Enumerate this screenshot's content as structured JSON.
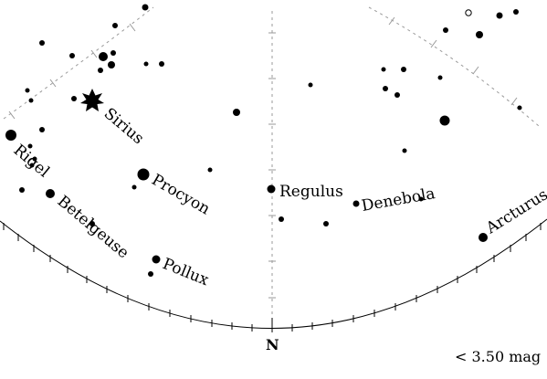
{
  "labels": {
    "sirius": "Sirius",
    "rigel": "Rigel",
    "betelgeuse": "Betelgeuse",
    "procyon": "Procyon",
    "pollux": "Pollux",
    "regulus": "Regulus",
    "denebola": "Denebola",
    "arcturus": "Arcturus"
  },
  "direction": "N",
  "magnitude_limit": "< 3.50 mag"
}
